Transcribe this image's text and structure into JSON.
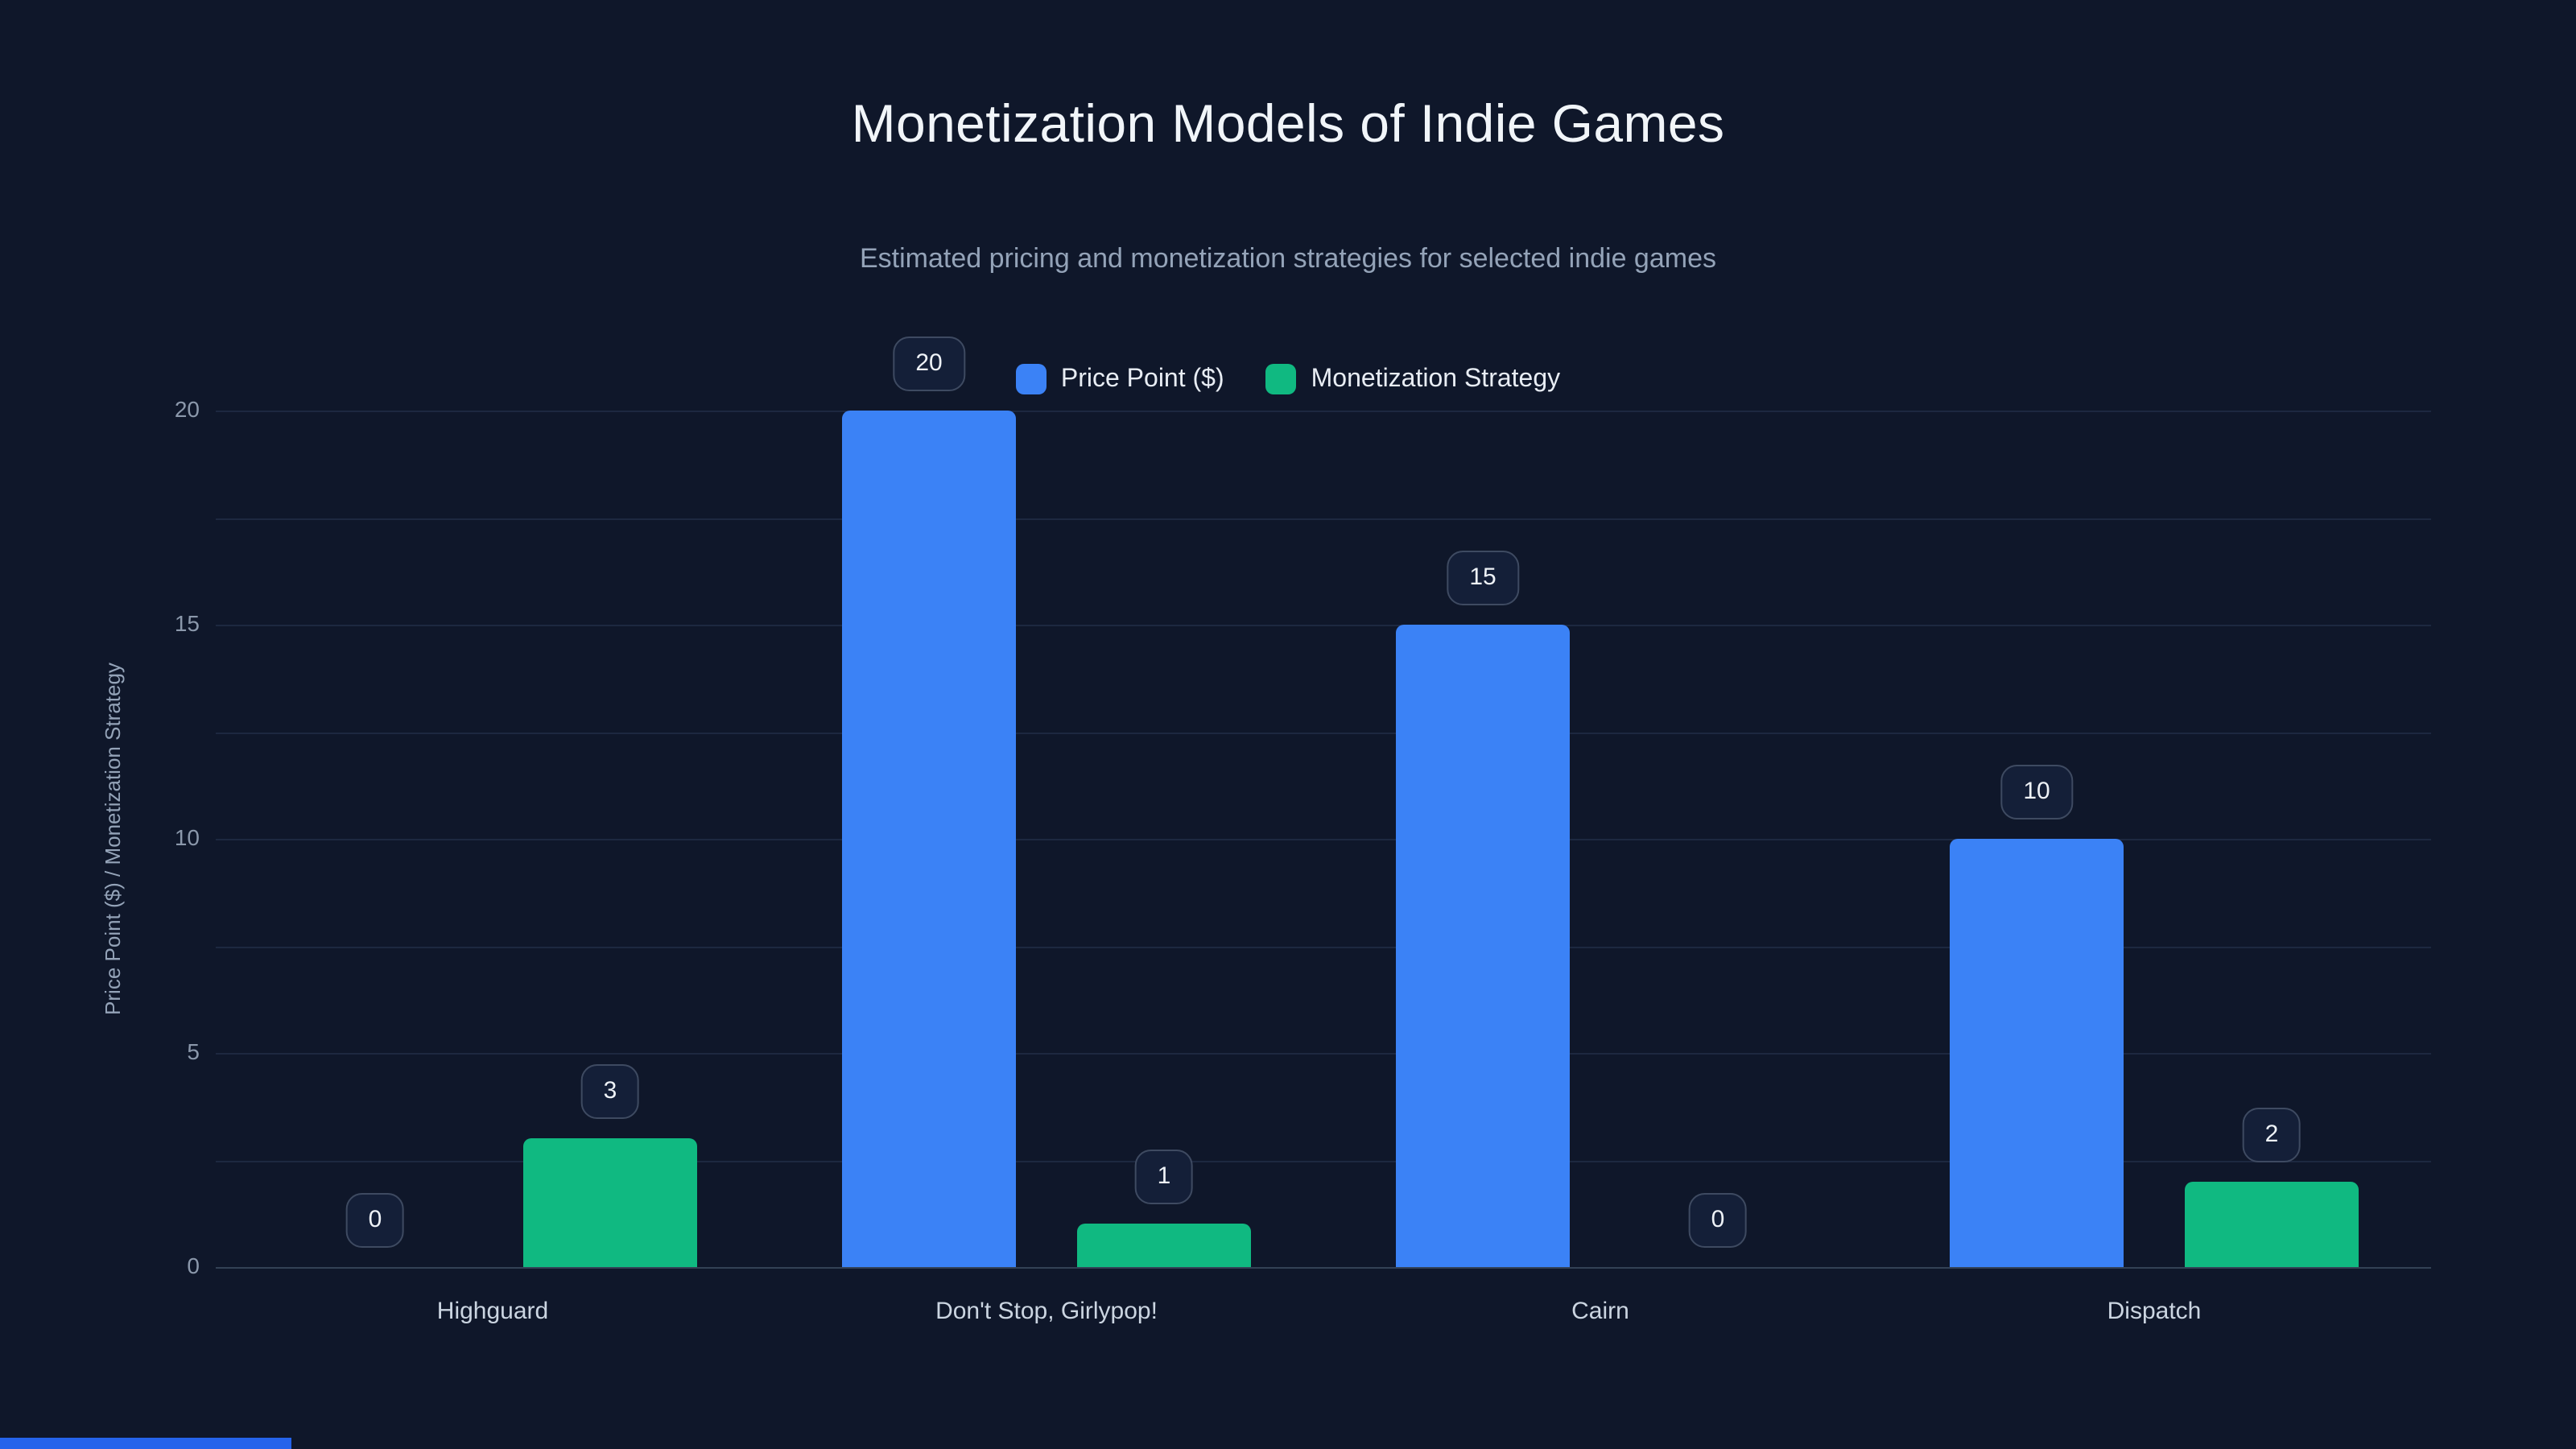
{
  "header": {
    "title": "Monetization Models of Indie Games",
    "subtitle": "Estimated pricing and monetization strategies for selected indie games"
  },
  "chart_data": {
    "type": "bar",
    "title": "Monetization Models of Indie Games",
    "subtitle": "Estimated pricing and monetization strategies for selected indie games",
    "categories": [
      "Highguard",
      "Don't Stop, Girlypop!",
      "Cairn",
      "Dispatch"
    ],
    "series": [
      {
        "name": "Price Point ($)",
        "color": "#3b82f6",
        "values": [
          0,
          20,
          15,
          10
        ]
      },
      {
        "name": "Monetization Strategy",
        "color": "#10b981",
        "values": [
          3,
          1,
          0,
          2
        ]
      }
    ],
    "xlabel": "",
    "ylabel": "Price Point ($) / Monetization Strategy",
    "ylim": [
      0,
      20
    ],
    "yticks": [
      0,
      5,
      10,
      15,
      20
    ],
    "grid_step": 2.5,
    "grid": true,
    "legend_position": "top-center",
    "data_labels": true
  },
  "colors": {
    "background": "#0f172a",
    "grid": "#1d2840",
    "baseline": "#334155",
    "title": "#f1f5f9",
    "subtitle": "#94a3b8",
    "accent_bottom_bar": "#2563eb"
  }
}
